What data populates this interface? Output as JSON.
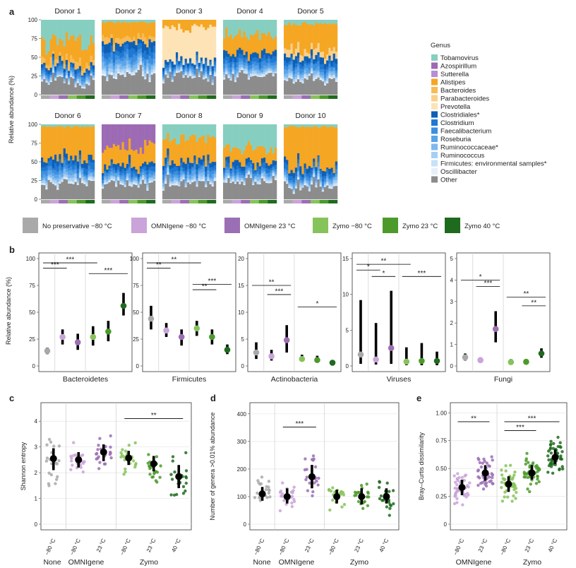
{
  "panel_labels": [
    "a",
    "b",
    "c",
    "d",
    "e"
  ],
  "chart_data": [
    {
      "type": "bar",
      "panel": "a",
      "stacked": true,
      "ylabel": "Relative abundance (%)",
      "ylim": [
        0,
        100
      ],
      "yticks": [
        "0",
        "25",
        "50",
        "75",
        "100"
      ],
      "donors": [
        "Donor 1",
        "Donor 2",
        "Donor 3",
        "Donor 4",
        "Donor 5",
        "Donor 6",
        "Donor 7",
        "Donor 8",
        "Donor 9",
        "Donor 10"
      ],
      "legend_title": "Genus",
      "genera": [
        {
          "name": "Tobamovirus",
          "color": "#86cfc0"
        },
        {
          "name": "Azospirillum",
          "color": "#9c6bb4"
        },
        {
          "name": "Sutterella",
          "color": "#b48fd4"
        },
        {
          "name": "Alistipes",
          "color": "#f5a623"
        },
        {
          "name": "Bacteroides",
          "color": "#f8bb55"
        },
        {
          "name": "Parabacteroides",
          "color": "#fbd08a"
        },
        {
          "name": "Prevotella",
          "color": "#fde3b6"
        },
        {
          "name": "Clostridiales*",
          "color": "#0e5fb5"
        },
        {
          "name": "Clostridium",
          "color": "#1f78d1"
        },
        {
          "name": "Faecalibacterium",
          "color": "#3c8fe0"
        },
        {
          "name": "Roseburia",
          "color": "#5aa4e8"
        },
        {
          "name": "Ruminococcaceae*",
          "color": "#7fb9ef"
        },
        {
          "name": "Ruminococcus",
          "color": "#a6cff4"
        },
        {
          "name": "Firmicutes: environmental samples*",
          "color": "#c8e1f8"
        },
        {
          "name": "Oscillibacter",
          "color": "#e5f0fb"
        },
        {
          "name": "Other",
          "color": "#8c8c8c"
        }
      ],
      "donor_profiles": [
        {
          "donor": "Donor 1",
          "Tobamovirus": 30,
          "Alistipes": 22,
          "Bacteroides": 8,
          "blue": 20,
          "Other": 20
        },
        {
          "donor": "Donor 2",
          "Tobamovirus": 3,
          "Alistipes": 20,
          "Bacteroides": 7,
          "blue": 45,
          "Other": 25
        },
        {
          "donor": "Donor 3",
          "Prevotella": 45,
          "Alistipes": 10,
          "blue": 20,
          "Other": 25
        },
        {
          "donor": "Donor 4",
          "Tobamovirus": 20,
          "Alistipes": 25,
          "blue": 30,
          "Other": 25
        },
        {
          "donor": "Donor 5",
          "Tobamovirus": 5,
          "Alistipes": 35,
          "Parabacteroides": 10,
          "blue": 30,
          "Other": 20
        },
        {
          "donor": "Donor 6",
          "Tobamovirus": 3,
          "Alistipes": 40,
          "blue": 35,
          "Other": 22
        },
        {
          "donor": "Donor 7",
          "Azospirillum": 30,
          "Alistipes": 25,
          "blue": 25,
          "Other": 20
        },
        {
          "donor": "Donor 8",
          "Tobamovirus": 18,
          "Alistipes": 30,
          "blue": 30,
          "Other": 22
        },
        {
          "donor": "Donor 9",
          "Tobamovirus": 30,
          "Alistipes": 20,
          "blue": 25,
          "Other": 25
        },
        {
          "donor": "Donor 10",
          "Tobamovirus": 3,
          "Alistipes": 55,
          "blue": 25,
          "Other": 17
        }
      ]
    },
    {
      "type": "scatter",
      "panel": "b",
      "ylabel": "Relative abundance (%)",
      "condition_legend": [
        {
          "name": "No preservative −80 °C",
          "color": "#a9a9a9"
        },
        {
          "name": "OMNIgene −80 °C",
          "color": "#c9a3d9"
        },
        {
          "name": "OMNIgene 23 °C",
          "color": "#9b6fb3"
        },
        {
          "name": "Zymo −80 °C",
          "color": "#86c35b"
        },
        {
          "name": "Zymo 23 °C",
          "color": "#4d9a2c"
        },
        {
          "name": "Zymo 40 °C",
          "color": "#1f6b1e"
        }
      ],
      "subplots": [
        {
          "name": "Bacteroidetes",
          "ylim": [
            0,
            100
          ],
          "yticks": [
            "0",
            "25",
            "50",
            "75",
            "100"
          ],
          "median": [
            14,
            27,
            22,
            27,
            32,
            56
          ],
          "low": [
            11,
            20,
            15,
            19,
            23,
            47
          ],
          "high": [
            17,
            34,
            30,
            37,
            42,
            68
          ],
          "sig": [
            {
              "a": 0,
              "b": 1,
              "y": 91,
              "label": "***"
            },
            {
              "a": 0,
              "b": 3,
              "y": 96,
              "label": "***"
            },
            {
              "a": 3,
              "b": 5,
              "y": 86,
              "label": "***"
            }
          ]
        },
        {
          "name": "Firmicutes",
          "ylim": [
            0,
            100
          ],
          "yticks": [
            "0",
            "25",
            "50",
            "75",
            "100"
          ],
          "median": [
            44,
            33,
            27,
            35,
            27,
            15
          ],
          "low": [
            34,
            27,
            19,
            28,
            20,
            11
          ],
          "high": [
            56,
            40,
            34,
            42,
            34,
            20
          ],
          "sig": [
            {
              "a": 0,
              "b": 1,
              "y": 91,
              "label": "**"
            },
            {
              "a": 0,
              "b": 3,
              "y": 96,
              "label": "**"
            },
            {
              "a": 3,
              "b": 4,
              "y": 71,
              "label": "**"
            },
            {
              "a": 3,
              "b": 5,
              "y": 76,
              "label": "***"
            }
          ]
        },
        {
          "name": "Actinobacteria",
          "ylim": [
            0,
            20
          ],
          "yticks": [
            "0",
            "5",
            "10",
            "15",
            "20"
          ],
          "median": [
            2.5,
            1.8,
            4.8,
            1.3,
            1.1,
            0.6
          ],
          "low": [
            1.3,
            1.0,
            2.5,
            0.8,
            0.6,
            0.4
          ],
          "high": [
            4.4,
            3.0,
            7.6,
            2.1,
            1.9,
            1.0
          ],
          "sig": [
            {
              "a": 0,
              "b": 2,
              "y": 15,
              "label": "**"
            },
            {
              "a": 1,
              "b": 2,
              "y": 13.3,
              "label": "***"
            },
            {
              "a": 3,
              "b": 5,
              "y": 11,
              "label": "*"
            }
          ]
        },
        {
          "name": "Viruses",
          "ylim": [
            0,
            15
          ],
          "yticks": [
            "0",
            "5",
            "10",
            "15"
          ],
          "median": [
            1.6,
            0.9,
            2.5,
            0.6,
            0.7,
            0.7
          ],
          "low": [
            0.3,
            0.2,
            0.3,
            0.1,
            0.1,
            0.1
          ],
          "high": [
            9.2,
            6.0,
            10.5,
            2.6,
            3.2,
            2.0
          ],
          "sig": [
            {
              "a": 0,
              "b": 1,
              "y": 13.4,
              "label": "*"
            },
            {
              "a": 0,
              "b": 3,
              "y": 14.2,
              "label": "**"
            },
            {
              "a": 1,
              "b": 2,
              "y": 12.5,
              "label": "*"
            },
            {
              "a": 3,
              "b": 5,
              "y": 12.5,
              "label": "***"
            }
          ]
        },
        {
          "name": "Fungi",
          "ylim": [
            0,
            5
          ],
          "yticks": [
            "0",
            "1",
            "2",
            "3",
            "4",
            "5"
          ],
          "median": [
            0.4,
            0.27,
            1.72,
            0.18,
            0.19,
            0.58
          ],
          "low": [
            0.25,
            0.17,
            1.1,
            0.08,
            0.1,
            0.38
          ],
          "high": [
            0.58,
            0.4,
            2.55,
            0.32,
            0.32,
            0.82
          ],
          "sig": [
            {
              "a": 0,
              "b": 2,
              "y": 4.0,
              "label": "*"
            },
            {
              "a": 1,
              "b": 2,
              "y": 3.7,
              "label": "***"
            },
            {
              "a": 3,
              "b": 5,
              "y": 3.2,
              "label": "**"
            },
            {
              "a": 4,
              "b": 5,
              "y": 2.8,
              "label": "**"
            }
          ]
        }
      ]
    },
    {
      "type": "scatter",
      "panel": "c",
      "ylabel": "Shannon entropy",
      "ylim": [
        0,
        4.5
      ],
      "yticks": [
        "0",
        "1",
        "2",
        "3",
        "4"
      ],
      "xticks": [
        "−80 °C",
        "−80 °C",
        "23 °C",
        "−80 °C",
        "23 °C",
        "40 °C"
      ],
      "groups": [
        "None",
        "OMNIgene",
        "Zymo"
      ],
      "median": [
        2.55,
        2.5,
        2.8,
        2.57,
        2.35,
        1.85
      ],
      "low": [
        2.1,
        2.2,
        2.45,
        2.3,
        2.05,
        1.4
      ],
      "high": [
        2.95,
        2.8,
        3.1,
        2.85,
        2.65,
        2.3
      ],
      "sig": [
        {
          "a": 3,
          "b": 5,
          "y": 4.1,
          "label": "**"
        }
      ]
    },
    {
      "type": "scatter",
      "panel": "d",
      "ylabel": "Number of genera >0.01% abundance",
      "ylim": [
        0,
        420
      ],
      "yticks": [
        "0",
        "100",
        "200",
        "300",
        "400"
      ],
      "xticks": [
        "−80 °C",
        "−80 °C",
        "23 °C",
        "−80 °C",
        "23 °C",
        "40 °C"
      ],
      "groups": [
        "None",
        "OMNIgene",
        "Zymo"
      ],
      "median": [
        110,
        100,
        172,
        100,
        100,
        100
      ],
      "low": [
        85,
        75,
        130,
        75,
        72,
        75
      ],
      "high": [
        135,
        130,
        215,
        125,
        130,
        130
      ],
      "sig": [
        {
          "a": 1,
          "b": 2,
          "y": 352,
          "label": "***"
        }
      ]
    },
    {
      "type": "scatter",
      "panel": "e",
      "ylabel": "Bray–Curtis dissimilarity",
      "ylim": [
        0,
        1.04
      ],
      "yticks": [
        "0",
        "0.25",
        "0.50",
        "0.75",
        "1.00"
      ],
      "xticks": [
        "−80 °C",
        "23 °C",
        "−80 °C",
        "23 °C",
        "40 °C"
      ],
      "groups": [
        "OMNIgene",
        "Zymo"
      ],
      "median": [
        0.33,
        0.46,
        0.36,
        0.46,
        0.6
      ],
      "low": [
        0.26,
        0.39,
        0.29,
        0.4,
        0.54
      ],
      "high": [
        0.4,
        0.53,
        0.43,
        0.53,
        0.67
      ],
      "sig": [
        {
          "a": 0,
          "b": 1,
          "y": 0.92,
          "label": "**"
        },
        {
          "a": 2,
          "b": 3,
          "y": 0.84,
          "label": "***"
        },
        {
          "a": 2,
          "b": 4,
          "y": 0.92,
          "label": "***"
        }
      ]
    }
  ]
}
